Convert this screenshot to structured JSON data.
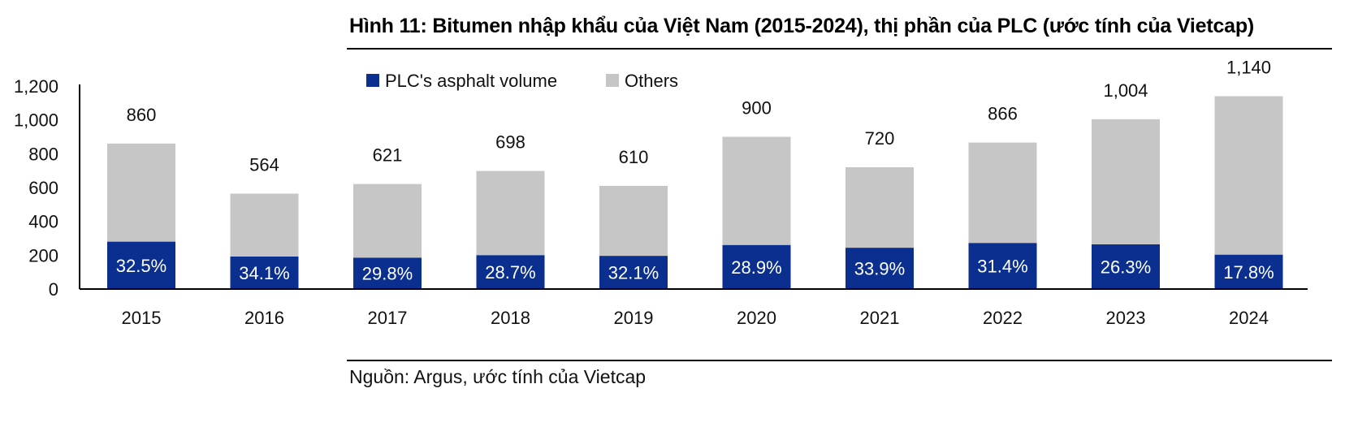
{
  "title": "Hình 11: Bitumen nhập khẩu của Việt Nam (2015-2024), thị phần của PLC (ước tính của Vietcap)",
  "source": "Nguồn: Argus, ước tính của Vietcap",
  "chart_data": {
    "type": "bar",
    "stacked": true,
    "categories": [
      "2015",
      "2016",
      "2017",
      "2018",
      "2019",
      "2020",
      "2021",
      "2022",
      "2023",
      "2024"
    ],
    "totals": [
      860,
      564,
      621,
      698,
      610,
      900,
      720,
      866,
      1004,
      1140
    ],
    "total_labels": [
      "860",
      "564",
      "621",
      "698",
      "610",
      "900",
      "720",
      "866",
      "1,004",
      "1,140"
    ],
    "share_labels": [
      "32.5%",
      "34.1%",
      "29.8%",
      "28.7%",
      "32.1%",
      "28.9%",
      "33.9%",
      "31.4%",
      "26.3%",
      "17.8%"
    ],
    "series": [
      {
        "name": "PLC's asphalt volume",
        "color": "#0a2f8f",
        "values": [
          280,
          192,
          185,
          200,
          196,
          260,
          244,
          272,
          264,
          203
        ]
      },
      {
        "name": "Others",
        "color": "#c6c6c6",
        "values": [
          580,
          372,
          436,
          498,
          414,
          640,
          476,
          594,
          740,
          937
        ]
      }
    ],
    "y_ticks": [
      0,
      200,
      400,
      600,
      800,
      1000,
      1200
    ],
    "y_tick_labels": [
      "0",
      "200",
      "400",
      "600",
      "800",
      "1,000",
      "1,200"
    ],
    "ylim": [
      0,
      1200
    ],
    "xlabel": "",
    "ylabel": "",
    "grid": false,
    "legend_position": "top-left"
  }
}
